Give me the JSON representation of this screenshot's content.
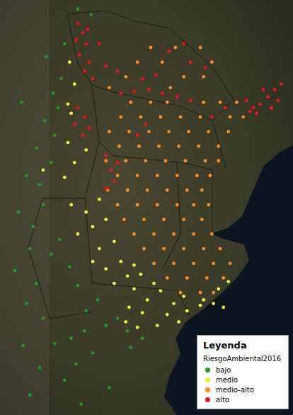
{
  "chart_data": {
    "type": "scatter",
    "legend_title": "Leyenda",
    "legend_field": "RiesgoAmbiental2016",
    "legend": "bottom-right",
    "grid": false,
    "tick_labels": false,
    "xlim": [
      -71,
      -53.5
    ],
    "ylim": [
      -44,
      -21.5
    ],
    "series": [
      {
        "name": "bajo",
        "color": "#1f9a1f",
        "points": [
          [
            -66.4,
            -21.9
          ],
          [
            -65.6,
            -22.2
          ],
          [
            -67.2,
            -23.8
          ],
          [
            -68.3,
            -24.5
          ],
          [
            -67.4,
            -25.7
          ],
          [
            -67.9,
            -26.5
          ],
          [
            -67.6,
            -27.3
          ],
          [
            -68.4,
            -28.0
          ],
          [
            -67.8,
            -28.8
          ],
          [
            -68.9,
            -29.5
          ],
          [
            -68.0,
            -30.3
          ],
          [
            -69.5,
            -31.0
          ],
          [
            -68.7,
            -31.5
          ],
          [
            -68.5,
            -32.6
          ],
          [
            -69.1,
            -33.8
          ],
          [
            -67.5,
            -34.5
          ],
          [
            -69.3,
            -35.0
          ],
          [
            -68.0,
            -35.3
          ],
          [
            -66.9,
            -36.0
          ],
          [
            -68.9,
            -36.9
          ],
          [
            -66.4,
            -37.0
          ],
          [
            -69.5,
            -38.0
          ],
          [
            -65.2,
            -37.8
          ],
          [
            -65.9,
            -38.4
          ],
          [
            -68.5,
            -38.8
          ],
          [
            -64.0,
            -38.8
          ],
          [
            -64.7,
            -39.2
          ],
          [
            -66.0,
            -39.5
          ],
          [
            -63.4,
            -39.5
          ],
          [
            -66.8,
            -39.9
          ],
          [
            -62.5,
            -39.9
          ],
          [
            -67.8,
            -40.2
          ],
          [
            -69.7,
            -40.3
          ],
          [
            -63.2,
            -40.4
          ],
          [
            -65.5,
            -40.7
          ],
          [
            -66.5,
            -41.3
          ],
          [
            -68.7,
            -41.5
          ],
          [
            -67.2,
            -42.2
          ],
          [
            -69.3,
            -43.0
          ],
          [
            -70.2,
            -36.2
          ],
          [
            -70.0,
            -33.0
          ],
          [
            -69.8,
            -27.0
          ],
          [
            -66.2,
            -43.5
          ],
          [
            -64.5,
            -42.6
          ]
        ]
      },
      {
        "name": "medio",
        "color": "#f0ee3a",
        "points": [
          [
            -66.6,
            -26.0
          ],
          [
            -66.9,
            -24.8
          ],
          [
            -67.0,
            -27.1
          ],
          [
            -66.8,
            -27.6
          ],
          [
            -67.0,
            -29.2
          ],
          [
            -65.9,
            -29.6
          ],
          [
            -66.6,
            -30.3
          ],
          [
            -67.2,
            -31.1
          ],
          [
            -68.5,
            -30.7
          ],
          [
            -66.8,
            -32.6
          ],
          [
            -65.1,
            -32.3
          ],
          [
            -65.9,
            -33.0
          ],
          [
            -64.7,
            -33.4
          ],
          [
            -65.5,
            -33.8
          ],
          [
            -66.4,
            -34.2
          ],
          [
            -64.2,
            -34.6
          ],
          [
            -65.1,
            -35.0
          ],
          [
            -65.5,
            -35.7
          ],
          [
            -63.8,
            -35.7
          ],
          [
            -64.7,
            -36.1
          ],
          [
            -63.0,
            -35.9
          ],
          [
            -62.6,
            -36.4
          ],
          [
            -63.4,
            -36.5
          ],
          [
            -64.2,
            -36.9
          ],
          [
            -61.8,
            -36.9
          ],
          [
            -63.0,
            -37.2
          ],
          [
            -61.4,
            -37.3
          ],
          [
            -60.0,
            -37.6
          ],
          [
            -62.2,
            -37.8
          ],
          [
            -58.8,
            -37.8
          ],
          [
            -60.6,
            -38.0
          ],
          [
            -58.2,
            -38.0
          ],
          [
            -59.0,
            -38.1
          ],
          [
            -57.6,
            -38.2
          ],
          [
            -63.3,
            -38.2
          ],
          [
            -59.8,
            -38.4
          ],
          [
            -62.5,
            -38.5
          ],
          [
            -61.0,
            -38.6
          ],
          [
            -60.3,
            -39.0
          ],
          [
            -63.5,
            -39.0
          ],
          [
            -61.6,
            -39.2
          ],
          [
            -62.8,
            -39.3
          ],
          [
            -57.9,
            -37.2
          ],
          [
            -57.3,
            -36.8
          ]
        ]
      },
      {
        "name": "medio-alto",
        "color": "#ff8c1a",
        "points": [
          [
            -62.0,
            -24.0
          ],
          [
            -60.5,
            -24.0
          ],
          [
            -59.0,
            -24.0
          ],
          [
            -62.8,
            -24.8
          ],
          [
            -61.3,
            -24.8
          ],
          [
            -58.3,
            -24.8
          ],
          [
            -63.5,
            -25.6
          ],
          [
            -60.0,
            -25.6
          ],
          [
            -58.8,
            -25.6
          ],
          [
            -64.5,
            -26.2
          ],
          [
            -60.8,
            -26.2
          ],
          [
            -63.2,
            -27.0
          ],
          [
            -62.0,
            -27.0
          ],
          [
            -61.0,
            -27.0
          ],
          [
            -58.8,
            -27.0
          ],
          [
            -57.8,
            -27.0
          ],
          [
            -56.8,
            -27.0
          ],
          [
            -63.8,
            -27.8
          ],
          [
            -62.6,
            -27.8
          ],
          [
            -61.4,
            -27.8
          ],
          [
            -60.2,
            -27.8
          ],
          [
            -59.0,
            -27.8
          ],
          [
            -57.2,
            -27.8
          ],
          [
            -56.4,
            -27.8
          ],
          [
            -64.5,
            -28.6
          ],
          [
            -63.3,
            -28.6
          ],
          [
            -62.1,
            -28.6
          ],
          [
            -60.9,
            -28.6
          ],
          [
            -59.7,
            -28.6
          ],
          [
            -58.5,
            -28.6
          ],
          [
            -57.3,
            -28.6
          ],
          [
            -63.9,
            -29.4
          ],
          [
            -62.7,
            -29.4
          ],
          [
            -61.5,
            -29.4
          ],
          [
            -60.3,
            -29.4
          ],
          [
            -59.1,
            -29.4
          ],
          [
            -57.9,
            -29.4
          ],
          [
            -64.7,
            -30.2
          ],
          [
            -63.5,
            -30.2
          ],
          [
            -62.3,
            -30.2
          ],
          [
            -61.1,
            -30.2
          ],
          [
            -59.9,
            -30.2
          ],
          [
            -58.7,
            -30.2
          ],
          [
            -57.9,
            -30.2
          ],
          [
            -64.0,
            -31.0
          ],
          [
            -62.8,
            -31.0
          ],
          [
            -61.6,
            -31.0
          ],
          [
            -60.4,
            -31.0
          ],
          [
            -59.2,
            -31.0
          ],
          [
            -58.4,
            -31.0
          ],
          [
            -64.6,
            -31.8
          ],
          [
            -63.4,
            -31.8
          ],
          [
            -62.2,
            -31.8
          ],
          [
            -61.0,
            -31.8
          ],
          [
            -59.8,
            -31.8
          ],
          [
            -58.9,
            -31.8
          ],
          [
            -64.0,
            -32.6
          ],
          [
            -62.8,
            -32.6
          ],
          [
            -61.6,
            -32.6
          ],
          [
            -60.4,
            -32.6
          ],
          [
            -59.4,
            -32.6
          ],
          [
            -58.5,
            -32.6
          ],
          [
            -63.6,
            -33.4
          ],
          [
            -62.4,
            -33.4
          ],
          [
            -61.2,
            -33.4
          ],
          [
            -60.0,
            -33.4
          ],
          [
            -58.9,
            -33.4
          ],
          [
            -63.0,
            -34.2
          ],
          [
            -61.8,
            -34.2
          ],
          [
            -60.6,
            -34.2
          ],
          [
            -59.4,
            -34.2
          ],
          [
            -58.3,
            -34.2
          ],
          [
            -62.4,
            -35.0
          ],
          [
            -61.2,
            -35.0
          ],
          [
            -60.0,
            -35.0
          ],
          [
            -58.8,
            -35.0
          ],
          [
            -57.8,
            -35.0
          ],
          [
            -61.8,
            -35.8
          ],
          [
            -60.6,
            -35.8
          ],
          [
            -59.4,
            -35.8
          ],
          [
            -58.2,
            -35.8
          ],
          [
            -57.2,
            -35.8
          ],
          [
            -61.0,
            -36.6
          ],
          [
            -59.8,
            -36.6
          ],
          [
            -58.6,
            -36.6
          ],
          [
            -57.6,
            -36.6
          ],
          [
            -60.2,
            -37.4
          ],
          [
            -59.0,
            -37.4
          ],
          [
            -58.2,
            -37.4
          ]
        ]
      },
      {
        "name": "alto",
        "color": "#e8141a",
        "points": [
          [
            -66.4,
            -22.7
          ],
          [
            -65.8,
            -23.0
          ],
          [
            -66.1,
            -23.2
          ],
          [
            -66.5,
            -23.6
          ],
          [
            -65.9,
            -23.8
          ],
          [
            -66.3,
            -24.4
          ],
          [
            -65.7,
            -24.8
          ],
          [
            -66.0,
            -25.3
          ],
          [
            -65.5,
            -25.7
          ],
          [
            -65.1,
            -23.8
          ],
          [
            -64.7,
            -25.0
          ],
          [
            -64.0,
            -25.3
          ],
          [
            -66.4,
            -27.3
          ],
          [
            -66.0,
            -27.8
          ],
          [
            -66.6,
            -28.2
          ],
          [
            -65.7,
            -28.4
          ],
          [
            -66.1,
            -28.8
          ],
          [
            -63.8,
            -26.5
          ],
          [
            -63.0,
            -26.4
          ],
          [
            -62.1,
            -26.3
          ],
          [
            -61.3,
            -26.5
          ],
          [
            -60.4,
            -26.7
          ],
          [
            -59.6,
            -26.9
          ],
          [
            -62.5,
            -25.7
          ],
          [
            -61.7,
            -25.5
          ],
          [
            -60.9,
            -24.2
          ],
          [
            -60.0,
            -23.8
          ],
          [
            -59.6,
            -24.8
          ],
          [
            -58.7,
            -25.1
          ],
          [
            -64.7,
            -29.9
          ],
          [
            -64.0,
            -30.3
          ],
          [
            -64.4,
            -30.7
          ],
          [
            -64.2,
            -31.3
          ],
          [
            -64.7,
            -31.7
          ],
          [
            -62.8,
            -28.8
          ],
          [
            -62.3,
            -28.2
          ],
          [
            -58.3,
            -27.8
          ],
          [
            -57.5,
            -27.3
          ],
          [
            -56.2,
            -26.9
          ],
          [
            -55.8,
            -27.3
          ],
          [
            -55.4,
            -27.1
          ],
          [
            -54.9,
            -26.7
          ],
          [
            -54.5,
            -26.3
          ],
          [
            -54.1,
            -26.0
          ],
          [
            -54.7,
            -27.3
          ],
          [
            -55.6,
            -27.6
          ],
          [
            -54.3,
            -26.9
          ],
          [
            -55.2,
            -26.3
          ],
          [
            -56.0,
            -27.5
          ]
        ]
      }
    ]
  }
}
